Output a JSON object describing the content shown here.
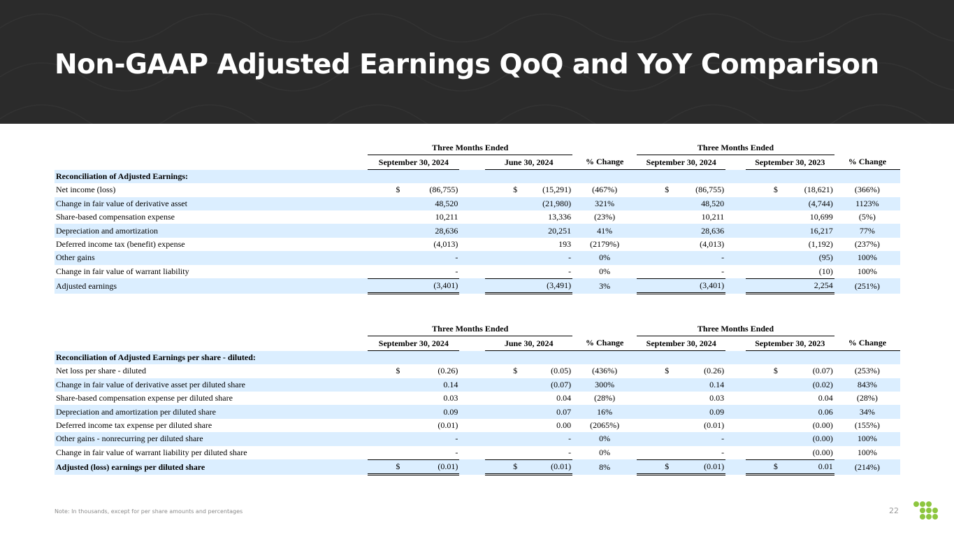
{
  "title": "Non-GAAP Adjusted Earnings QoQ and YoY Comparison",
  "note": "Note: In thousands, except for per share amounts and percentages",
  "page_number": "22",
  "colors": {
    "header_bg": "#2b2b2b",
    "row_shade": "#dbeeff",
    "logo": "#8dc63f"
  },
  "table1": {
    "group_headers": [
      "Three Months Ended",
      "Three Months Ended"
    ],
    "column_headers": [
      "September 30, 2024",
      "June 30, 2024",
      "% Change",
      "September 30, 2024",
      "September 30, 2023",
      "% Change"
    ],
    "section_label": "Reconciliation of Adjusted Earnings:",
    "rows": [
      {
        "label": "Net income (loss)",
        "dollar": "$",
        "values": [
          "(86,755)",
          "(15,291)",
          "(467%)",
          "(86,755)",
          "(18,621)",
          "(366%)"
        ]
      },
      {
        "label": "Change in fair value of derivative asset",
        "values": [
          "48,520",
          "(21,980)",
          "321%",
          "48,520",
          "(4,744)",
          "1123%"
        ]
      },
      {
        "label": "Share-based compensation expense",
        "values": [
          "10,211",
          "13,336",
          "(23%)",
          "10,211",
          "10,699",
          "(5%)"
        ]
      },
      {
        "label": "Depreciation and amortization",
        "values": [
          "28,636",
          "20,251",
          "41%",
          "28,636",
          "16,217",
          "77%"
        ]
      },
      {
        "label": "Deferred income tax (benefit) expense",
        "values": [
          "(4,013)",
          "193",
          "(2179%)",
          "(4,013)",
          "(1,192)",
          "(237%)"
        ]
      },
      {
        "label": "Other gains",
        "values": [
          "-",
          "-",
          "0%",
          "-",
          "(95)",
          "100%"
        ]
      },
      {
        "label": "Change in fair value of warrant liability",
        "values": [
          "-",
          "-",
          "0%",
          "-",
          "(10)",
          "100%"
        ]
      },
      {
        "label": "Adjusted earnings",
        "values": [
          "(3,401)",
          "(3,491)",
          "3%",
          "(3,401)",
          "2,254",
          "(251%)"
        ]
      }
    ]
  },
  "table2": {
    "group_headers": [
      "Three Months Ended",
      "Three Months Ended"
    ],
    "column_headers": [
      "September 30, 2024",
      "June 30, 2024",
      "% Change",
      "September 30, 2024",
      "September 30, 2023",
      "% Change"
    ],
    "section_label": "Reconciliation of Adjusted Earnings per share - diluted:",
    "rows": [
      {
        "label": "Net loss per share - diluted",
        "dollar": "$",
        "values": [
          "(0.26)",
          "(0.05)",
          "(436%)",
          "(0.26)",
          "(0.07)",
          "(253%)"
        ]
      },
      {
        "label": "Change in fair value of derivative asset per diluted share",
        "values": [
          "0.14",
          "(0.07)",
          "300%",
          "0.14",
          "(0.02)",
          "843%"
        ]
      },
      {
        "label": "Share-based compensation expense per diluted share",
        "values": [
          "0.03",
          "0.04",
          "(28%)",
          "0.03",
          "0.04",
          "(28%)"
        ]
      },
      {
        "label": "Depreciation and amortization per diluted share",
        "values": [
          "0.09",
          "0.07",
          "16%",
          "0.09",
          "0.06",
          "34%"
        ]
      },
      {
        "label": "Deferred income tax expense per diluted share",
        "values": [
          "(0.01)",
          "0.00",
          "(2065%)",
          "(0.01)",
          "(0.00)",
          "(155%)"
        ]
      },
      {
        "label": "Other gains - nonrecurring per diluted share",
        "values": [
          "-",
          "-",
          "0%",
          "-",
          "(0.00)",
          "100%"
        ]
      },
      {
        "label": "Change in fair value of warrant liability per diluted share",
        "values": [
          "-",
          "-",
          "0%",
          "-",
          "(0.00)",
          "100%"
        ]
      },
      {
        "label": "Adjusted (loss) earnings per diluted share",
        "dollar": "$",
        "values": [
          "(0.01)",
          "(0.01)",
          "8%",
          "(0.01)",
          "0.01",
          "(214%)"
        ]
      }
    ]
  }
}
